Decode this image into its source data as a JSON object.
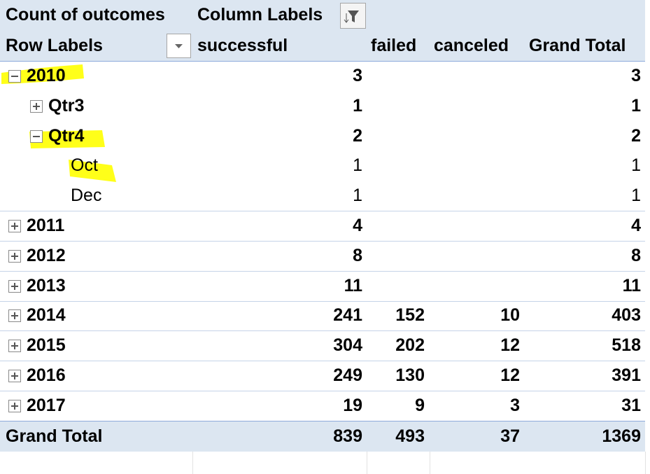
{
  "header": {
    "title": "Count of outcomes",
    "column_labels": "Column Labels",
    "row_labels": "Row Labels",
    "columns": [
      "successful",
      "failed",
      "canceled",
      "Grand Total"
    ]
  },
  "table": {
    "rows": [
      {
        "label": "2010",
        "values": [
          3,
          null,
          null,
          3
        ]
      },
      {
        "label": "Qtr3",
        "values": [
          1,
          null,
          null,
          1
        ]
      },
      {
        "label": "Qtr4",
        "values": [
          2,
          null,
          null,
          2
        ]
      },
      {
        "label": "Oct",
        "values": [
          1,
          null,
          null,
          1
        ]
      },
      {
        "label": "Dec",
        "values": [
          1,
          null,
          null,
          1
        ]
      },
      {
        "label": "2011",
        "values": [
          4,
          null,
          null,
          4
        ]
      },
      {
        "label": "2012",
        "values": [
          8,
          null,
          null,
          8
        ]
      },
      {
        "label": "2013",
        "values": [
          11,
          null,
          null,
          11
        ]
      },
      {
        "label": "2014",
        "values": [
          241,
          152,
          10,
          403
        ]
      },
      {
        "label": "2015",
        "values": [
          304,
          202,
          12,
          518
        ]
      },
      {
        "label": "2016",
        "values": [
          249,
          130,
          12,
          391
        ]
      },
      {
        "label": "2017",
        "values": [
          19,
          9,
          3,
          31
        ]
      }
    ],
    "total": {
      "label": "Grand Total",
      "values": [
        839,
        493,
        37,
        1369
      ]
    }
  }
}
